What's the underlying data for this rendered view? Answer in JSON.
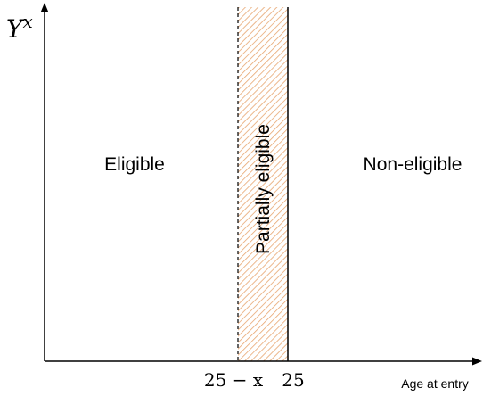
{
  "diagram": {
    "y_axis_label": {
      "base": "Y",
      "superscript": "x"
    },
    "x_axis_label": "Age at entry",
    "regions": {
      "left": "Eligible",
      "middle": "Partially eligible",
      "right": "Non-eligible"
    },
    "ticks": {
      "left_boundary": "25 − x",
      "right_boundary": "25"
    },
    "colors": {
      "hatch": "#e7a670",
      "axis": "#000000",
      "text": "#000000"
    }
  }
}
